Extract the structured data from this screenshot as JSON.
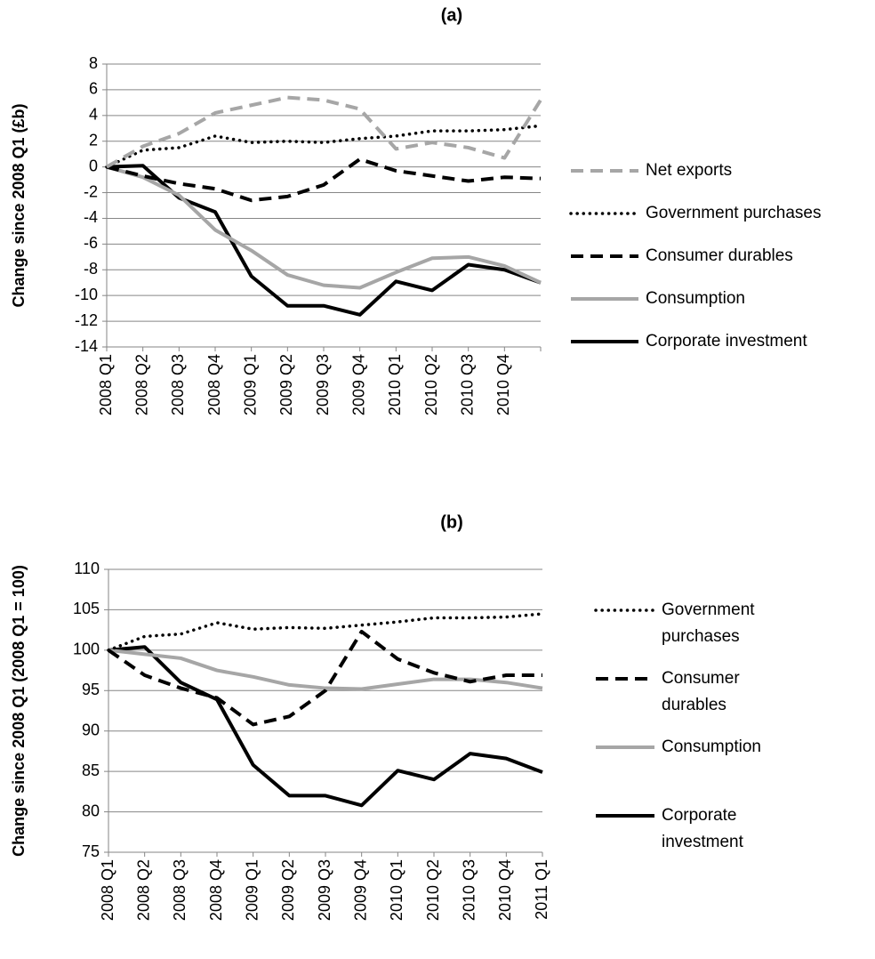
{
  "chart_data": [
    {
      "type": "line",
      "title": "(a)",
      "y_label": "Change since 2008 Q1 (£b)",
      "categories": [
        "2008 Q1",
        "2008 Q2",
        "2008 Q3",
        "2008 Q4",
        "2009 Q1",
        "2009 Q2",
        "2009 Q3",
        "2009 Q4",
        "2010 Q1",
        "2010 Q2",
        "2010 Q3",
        "2010 Q4",
        null
      ],
      "ylim": [
        -14,
        8
      ],
      "yticks": [
        -14,
        -12,
        -10,
        -8,
        -6,
        -4,
        -2,
        0,
        2,
        4,
        6,
        8
      ],
      "grid": true,
      "series": [
        {
          "name": "Net exports",
          "color": "#a6a6a6",
          "style": "dashed",
          "values": [
            0,
            1.6,
            2.6,
            4.2,
            4.8,
            5.4,
            5.2,
            4.5,
            1.4,
            1.9,
            1.5,
            0.7,
            5.2
          ]
        },
        {
          "name": "Government purchases",
          "color": "#000000",
          "style": "dotted",
          "values": [
            0,
            1.3,
            1.5,
            2.4,
            1.9,
            2.0,
            1.9,
            2.2,
            2.4,
            2.8,
            2.8,
            2.9,
            3.2
          ]
        },
        {
          "name": "Consumer durables",
          "color": "#000000",
          "style": "dashed",
          "values": [
            0,
            -0.7,
            -1.3,
            -1.7,
            -2.6,
            -2.3,
            -1.4,
            0.6,
            -0.3,
            -0.7,
            -1.1,
            -0.8,
            -0.9
          ]
        },
        {
          "name": "Consumption",
          "color": "#a6a6a6",
          "style": "solid",
          "values": [
            0,
            -0.8,
            -2.2,
            -4.9,
            -6.5,
            -8.4,
            -9.2,
            -9.4,
            -8.2,
            -7.1,
            -7.0,
            -7.7,
            -9.0
          ]
        },
        {
          "name": "Corporate investment",
          "color": "#000000",
          "style": "solid",
          "values": [
            0,
            0.1,
            -2.4,
            -3.5,
            -8.5,
            -10.8,
            -10.8,
            -11.5,
            -8.9,
            -9.6,
            -7.6,
            -8.0,
            -9.0
          ]
        }
      ]
    },
    {
      "type": "line",
      "title": "(b)",
      "y_label": "Change since 2008 Q1 (2008 Q1 = 100)",
      "categories": [
        "2008 Q1",
        "2008 Q2",
        "2008 Q3",
        "2008 Q4",
        "2009 Q1",
        "2009 Q2",
        "2009 Q3",
        "2009 Q4",
        "2010 Q1",
        "2010 Q2",
        "2010 Q3",
        "2010 Q4",
        "2011 Q1"
      ],
      "ylim": [
        75,
        110
      ],
      "yticks": [
        75,
        80,
        85,
        90,
        95,
        100,
        105,
        110
      ],
      "grid": true,
      "series": [
        {
          "name": "Government purchases",
          "color": "#000000",
          "style": "dotted",
          "values": [
            100,
            101.7,
            102,
            103.4,
            102.6,
            102.8,
            102.7,
            103.1,
            103.5,
            104,
            104,
            104.1,
            104.5
          ]
        },
        {
          "name": "Consumer durables",
          "color": "#000000",
          "style": "dashed",
          "values": [
            100,
            96.9,
            95.3,
            94.1,
            90.8,
            91.8,
            95,
            102.3,
            98.9,
            97.2,
            96.1,
            96.9,
            96.9
          ]
        },
        {
          "name": "Consumption",
          "color": "#a6a6a6",
          "style": "solid",
          "values": [
            100,
            99.5,
            99.0,
            97.5,
            96.7,
            95.7,
            95.3,
            95.2,
            95.8,
            96.4,
            96.4,
            96.0,
            95.3
          ]
        },
        {
          "name": "Corporate investment",
          "color": "#000000",
          "style": "solid",
          "values": [
            100,
            100.4,
            96,
            93.9,
            85.8,
            82,
            82,
            80.8,
            85.1,
            84,
            87.2,
            86.6,
            84.9
          ]
        }
      ]
    }
  ]
}
